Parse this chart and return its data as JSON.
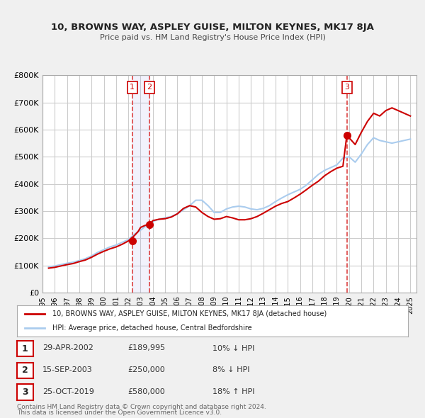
{
  "title": "10, BROWNS WAY, ASPLEY GUISE, MILTON KEYNES, MK17 8JA",
  "subtitle": "Price paid vs. HM Land Registry's House Price Index (HPI)",
  "xlabel": "",
  "ylabel": "",
  "ylim": [
    0,
    800000
  ],
  "yticks": [
    0,
    100000,
    200000,
    300000,
    400000,
    500000,
    600000,
    700000,
    800000
  ],
  "ytick_labels": [
    "£0",
    "£100K",
    "£200K",
    "£300K",
    "£400K",
    "£500K",
    "£600K",
    "£700K",
    "£800K"
  ],
  "xlim_start": 1995.0,
  "xlim_end": 2025.5,
  "xticks": [
    1995,
    1996,
    1997,
    1998,
    1999,
    2000,
    2001,
    2002,
    2003,
    2004,
    2005,
    2006,
    2007,
    2008,
    2009,
    2010,
    2011,
    2012,
    2013,
    2014,
    2015,
    2016,
    2017,
    2018,
    2019,
    2020,
    2021,
    2022,
    2023,
    2024,
    2025
  ],
  "background_color": "#f0f0f0",
  "plot_bg_color": "#ffffff",
  "grid_color": "#cccccc",
  "red_line_color": "#cc0000",
  "blue_line_color": "#aaccee",
  "sale_dot_color": "#cc0000",
  "transaction_line_color": "#dd4444",
  "shade_color": "#ddddff",
  "transactions": [
    {
      "num": 1,
      "date_str": "29-APR-2002",
      "year": 2002.32,
      "price": 189995,
      "hpi_diff": "10% ↓ HPI"
    },
    {
      "num": 2,
      "date_str": "15-SEP-2003",
      "year": 2003.71,
      "price": 250000,
      "hpi_diff": "8% ↓ HPI"
    },
    {
      "num": 3,
      "date_str": "25-OCT-2019",
      "year": 2019.82,
      "price": 580000,
      "hpi_diff": "18% ↑ HPI"
    }
  ],
  "legend_label_red": "10, BROWNS WAY, ASPLEY GUISE, MILTON KEYNES, MK17 8JA (detached house)",
  "legend_label_blue": "HPI: Average price, detached house, Central Bedfordshire",
  "footnote1": "Contains HM Land Registry data © Crown copyright and database right 2024.",
  "footnote2": "This data is licensed under the Open Government Licence v3.0.",
  "hpi_data": {
    "years": [
      1995.5,
      1996.0,
      1996.5,
      1997.0,
      1997.5,
      1998.0,
      1998.5,
      1999.0,
      1999.5,
      2000.0,
      2000.5,
      2001.0,
      2001.5,
      2002.0,
      2002.5,
      2003.0,
      2003.5,
      2004.0,
      2004.5,
      2005.0,
      2005.5,
      2006.0,
      2006.5,
      2007.0,
      2007.5,
      2008.0,
      2008.5,
      2009.0,
      2009.5,
      2010.0,
      2010.5,
      2011.0,
      2011.5,
      2012.0,
      2012.5,
      2013.0,
      2013.5,
      2014.0,
      2014.5,
      2015.0,
      2015.5,
      2016.0,
      2016.5,
      2017.0,
      2017.5,
      2018.0,
      2018.5,
      2019.0,
      2019.5,
      2020.0,
      2020.5,
      2021.0,
      2021.5,
      2022.0,
      2022.5,
      2023.0,
      2023.5,
      2024.0,
      2024.5,
      2025.0
    ],
    "values": [
      95000,
      98000,
      103000,
      108000,
      112000,
      118000,
      125000,
      135000,
      148000,
      158000,
      168000,
      175000,
      185000,
      195000,
      215000,
      230000,
      248000,
      262000,
      270000,
      275000,
      280000,
      290000,
      305000,
      320000,
      340000,
      340000,
      320000,
      295000,
      295000,
      308000,
      315000,
      318000,
      315000,
      308000,
      305000,
      310000,
      320000,
      335000,
      348000,
      360000,
      370000,
      380000,
      395000,
      415000,
      435000,
      450000,
      460000,
      470000,
      495000,
      500000,
      480000,
      510000,
      545000,
      570000,
      560000,
      555000,
      550000,
      555000,
      560000,
      565000
    ]
  },
  "price_data": {
    "years": [
      1995.5,
      1996.0,
      1996.5,
      1997.0,
      1997.5,
      1998.0,
      1998.5,
      1999.0,
      1999.5,
      2000.0,
      2000.5,
      2001.0,
      2001.5,
      2002.0,
      2002.5,
      2002.8,
      2003.0,
      2003.4,
      2003.71,
      2004.0,
      2004.5,
      2005.0,
      2005.5,
      2006.0,
      2006.5,
      2007.0,
      2007.5,
      2008.0,
      2008.5,
      2009.0,
      2009.5,
      2010.0,
      2010.5,
      2011.0,
      2011.5,
      2012.0,
      2012.5,
      2013.0,
      2013.5,
      2014.0,
      2014.5,
      2015.0,
      2015.5,
      2016.0,
      2016.5,
      2017.0,
      2017.5,
      2018.0,
      2018.5,
      2019.0,
      2019.5,
      2019.82,
      2020.0,
      2020.5,
      2021.0,
      2021.5,
      2022.0,
      2022.5,
      2023.0,
      2023.5,
      2024.0,
      2024.5,
      2025.0
    ],
    "values": [
      90000,
      93000,
      98000,
      103000,
      107000,
      114000,
      120000,
      130000,
      142000,
      152000,
      161000,
      168000,
      178000,
      189995,
      210000,
      225000,
      240000,
      248000,
      250000,
      265000,
      270000,
      272000,
      278000,
      290000,
      310000,
      320000,
      315000,
      295000,
      280000,
      270000,
      272000,
      280000,
      275000,
      268000,
      268000,
      272000,
      280000,
      292000,
      305000,
      318000,
      328000,
      335000,
      348000,
      362000,
      378000,
      395000,
      410000,
      430000,
      445000,
      458000,
      465000,
      580000,
      570000,
      545000,
      590000,
      630000,
      660000,
      650000,
      670000,
      680000,
      670000,
      660000,
      650000
    ]
  }
}
